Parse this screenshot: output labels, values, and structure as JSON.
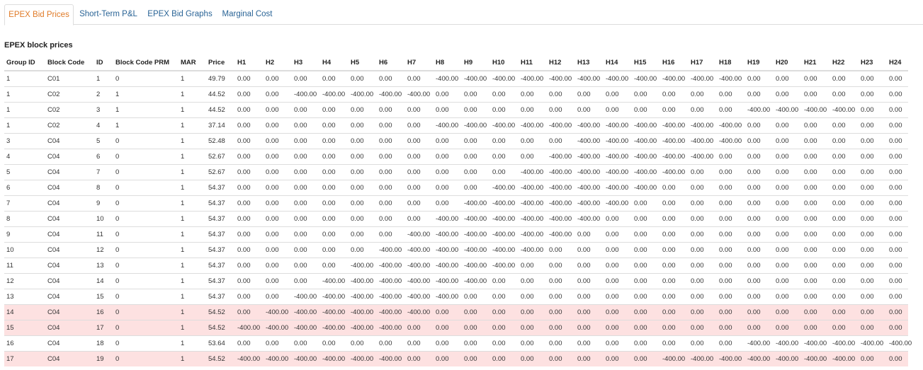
{
  "tabs": [
    {
      "label": "EPEX Bid Prices",
      "active": true
    },
    {
      "label": "Short-Term P&L",
      "active": false
    },
    {
      "label": "EPEX Bid Graphs",
      "active": false
    },
    {
      "label": "Marginal Cost",
      "active": false
    }
  ],
  "section_title": "EPEX block prices",
  "highlight_color": "#fde1e1",
  "accent_color": "#e07b28",
  "table": {
    "columns": [
      "Group ID",
      "Block Code",
      "ID",
      "Block Code PRM",
      "MAR",
      "Price",
      "H1",
      "H2",
      "H3",
      "H4",
      "H5",
      "H6",
      "H7",
      "H8",
      "H9",
      "H10",
      "H11",
      "H12",
      "H13",
      "H14",
      "H15",
      "H16",
      "H17",
      "H18",
      "H19",
      "H20",
      "H21",
      "H22",
      "H23",
      "H24"
    ],
    "rows": [
      {
        "highlight": false,
        "cells": [
          "1",
          "C01",
          "1",
          "0",
          "1",
          "49.79",
          "0.00",
          "0.00",
          "0.00",
          "0.00",
          "0.00",
          "0.00",
          "0.00",
          "-400.00",
          "-400.00",
          "-400.00",
          "-400.00",
          "-400.00",
          "-400.00",
          "-400.00",
          "-400.00",
          "-400.00",
          "-400.00",
          "-400.00",
          "0.00",
          "0.00",
          "0.00",
          "0.00",
          "0.00",
          "0.00"
        ]
      },
      {
        "highlight": false,
        "cells": [
          "1",
          "C02",
          "2",
          "1",
          "1",
          "44.52",
          "0.00",
          "0.00",
          "-400.00",
          "-400.00",
          "-400.00",
          "-400.00",
          "-400.00",
          "0.00",
          "0.00",
          "0.00",
          "0.00",
          "0.00",
          "0.00",
          "0.00",
          "0.00",
          "0.00",
          "0.00",
          "0.00",
          "0.00",
          "0.00",
          "0.00",
          "0.00",
          "0.00",
          "0.00"
        ]
      },
      {
        "highlight": false,
        "cells": [
          "1",
          "C02",
          "3",
          "1",
          "1",
          "44.52",
          "0.00",
          "0.00",
          "0.00",
          "0.00",
          "0.00",
          "0.00",
          "0.00",
          "0.00",
          "0.00",
          "0.00",
          "0.00",
          "0.00",
          "0.00",
          "0.00",
          "0.00",
          "0.00",
          "0.00",
          "0.00",
          "-400.00",
          "-400.00",
          "-400.00",
          "-400.00",
          "0.00",
          "0.00"
        ]
      },
      {
        "highlight": false,
        "cells": [
          "1",
          "C02",
          "4",
          "1",
          "1",
          "37.14",
          "0.00",
          "0.00",
          "0.00",
          "0.00",
          "0.00",
          "0.00",
          "0.00",
          "-400.00",
          "-400.00",
          "-400.00",
          "-400.00",
          "-400.00",
          "-400.00",
          "-400.00",
          "-400.00",
          "-400.00",
          "-400.00",
          "-400.00",
          "0.00",
          "0.00",
          "0.00",
          "0.00",
          "0.00",
          "0.00"
        ]
      },
      {
        "highlight": false,
        "cells": [
          "3",
          "C04",
          "5",
          "0",
          "1",
          "52.48",
          "0.00",
          "0.00",
          "0.00",
          "0.00",
          "0.00",
          "0.00",
          "0.00",
          "0.00",
          "0.00",
          "0.00",
          "0.00",
          "0.00",
          "-400.00",
          "-400.00",
          "-400.00",
          "-400.00",
          "-400.00",
          "-400.00",
          "0.00",
          "0.00",
          "0.00",
          "0.00",
          "0.00",
          "0.00"
        ]
      },
      {
        "highlight": false,
        "cells": [
          "4",
          "C04",
          "6",
          "0",
          "1",
          "52.67",
          "0.00",
          "0.00",
          "0.00",
          "0.00",
          "0.00",
          "0.00",
          "0.00",
          "0.00",
          "0.00",
          "0.00",
          "0.00",
          "-400.00",
          "-400.00",
          "-400.00",
          "-400.00",
          "-400.00",
          "-400.00",
          "0.00",
          "0.00",
          "0.00",
          "0.00",
          "0.00",
          "0.00",
          "0.00"
        ]
      },
      {
        "highlight": false,
        "cells": [
          "5",
          "C04",
          "7",
          "0",
          "1",
          "52.67",
          "0.00",
          "0.00",
          "0.00",
          "0.00",
          "0.00",
          "0.00",
          "0.00",
          "0.00",
          "0.00",
          "0.00",
          "-400.00",
          "-400.00",
          "-400.00",
          "-400.00",
          "-400.00",
          "-400.00",
          "0.00",
          "0.00",
          "0.00",
          "0.00",
          "0.00",
          "0.00",
          "0.00",
          "0.00"
        ]
      },
      {
        "highlight": false,
        "cells": [
          "6",
          "C04",
          "8",
          "0",
          "1",
          "54.37",
          "0.00",
          "0.00",
          "0.00",
          "0.00",
          "0.00",
          "0.00",
          "0.00",
          "0.00",
          "0.00",
          "-400.00",
          "-400.00",
          "-400.00",
          "-400.00",
          "-400.00",
          "-400.00",
          "0.00",
          "0.00",
          "0.00",
          "0.00",
          "0.00",
          "0.00",
          "0.00",
          "0.00",
          "0.00"
        ]
      },
      {
        "highlight": false,
        "cells": [
          "7",
          "C04",
          "9",
          "0",
          "1",
          "54.37",
          "0.00",
          "0.00",
          "0.00",
          "0.00",
          "0.00",
          "0.00",
          "0.00",
          "0.00",
          "-400.00",
          "-400.00",
          "-400.00",
          "-400.00",
          "-400.00",
          "-400.00",
          "0.00",
          "0.00",
          "0.00",
          "0.00",
          "0.00",
          "0.00",
          "0.00",
          "0.00",
          "0.00",
          "0.00"
        ]
      },
      {
        "highlight": false,
        "cells": [
          "8",
          "C04",
          "10",
          "0",
          "1",
          "54.37",
          "0.00",
          "0.00",
          "0.00",
          "0.00",
          "0.00",
          "0.00",
          "0.00",
          "-400.00",
          "-400.00",
          "-400.00",
          "-400.00",
          "-400.00",
          "-400.00",
          "0.00",
          "0.00",
          "0.00",
          "0.00",
          "0.00",
          "0.00",
          "0.00",
          "0.00",
          "0.00",
          "0.00",
          "0.00"
        ]
      },
      {
        "highlight": false,
        "cells": [
          "9",
          "C04",
          "11",
          "0",
          "1",
          "54.37",
          "0.00",
          "0.00",
          "0.00",
          "0.00",
          "0.00",
          "0.00",
          "-400.00",
          "-400.00",
          "-400.00",
          "-400.00",
          "-400.00",
          "-400.00",
          "0.00",
          "0.00",
          "0.00",
          "0.00",
          "0.00",
          "0.00",
          "0.00",
          "0.00",
          "0.00",
          "0.00",
          "0.00",
          "0.00"
        ]
      },
      {
        "highlight": false,
        "cells": [
          "10",
          "C04",
          "12",
          "0",
          "1",
          "54.37",
          "0.00",
          "0.00",
          "0.00",
          "0.00",
          "0.00",
          "-400.00",
          "-400.00",
          "-400.00",
          "-400.00",
          "-400.00",
          "-400.00",
          "0.00",
          "0.00",
          "0.00",
          "0.00",
          "0.00",
          "0.00",
          "0.00",
          "0.00",
          "0.00",
          "0.00",
          "0.00",
          "0.00",
          "0.00"
        ]
      },
      {
        "highlight": false,
        "cells": [
          "11",
          "C04",
          "13",
          "0",
          "1",
          "54.37",
          "0.00",
          "0.00",
          "0.00",
          "0.00",
          "-400.00",
          "-400.00",
          "-400.00",
          "-400.00",
          "-400.00",
          "-400.00",
          "0.00",
          "0.00",
          "0.00",
          "0.00",
          "0.00",
          "0.00",
          "0.00",
          "0.00",
          "0.00",
          "0.00",
          "0.00",
          "0.00",
          "0.00",
          "0.00"
        ]
      },
      {
        "highlight": false,
        "cells": [
          "12",
          "C04",
          "14",
          "0",
          "1",
          "54.37",
          "0.00",
          "0.00",
          "0.00",
          "-400.00",
          "-400.00",
          "-400.00",
          "-400.00",
          "-400.00",
          "-400.00",
          "0.00",
          "0.00",
          "0.00",
          "0.00",
          "0.00",
          "0.00",
          "0.00",
          "0.00",
          "0.00",
          "0.00",
          "0.00",
          "0.00",
          "0.00",
          "0.00",
          "0.00"
        ]
      },
      {
        "highlight": false,
        "cells": [
          "13",
          "C04",
          "15",
          "0",
          "1",
          "54.37",
          "0.00",
          "0.00",
          "-400.00",
          "-400.00",
          "-400.00",
          "-400.00",
          "-400.00",
          "-400.00",
          "0.00",
          "0.00",
          "0.00",
          "0.00",
          "0.00",
          "0.00",
          "0.00",
          "0.00",
          "0.00",
          "0.00",
          "0.00",
          "0.00",
          "0.00",
          "0.00",
          "0.00",
          "0.00"
        ]
      },
      {
        "highlight": true,
        "cells": [
          "14",
          "C04",
          "16",
          "0",
          "1",
          "54.52",
          "0.00",
          "-400.00",
          "-400.00",
          "-400.00",
          "-400.00",
          "-400.00",
          "-400.00",
          "0.00",
          "0.00",
          "0.00",
          "0.00",
          "0.00",
          "0.00",
          "0.00",
          "0.00",
          "0.00",
          "0.00",
          "0.00",
          "0.00",
          "0.00",
          "0.00",
          "0.00",
          "0.00",
          "0.00"
        ]
      },
      {
        "highlight": true,
        "cells": [
          "15",
          "C04",
          "17",
          "0",
          "1",
          "54.52",
          "-400.00",
          "-400.00",
          "-400.00",
          "-400.00",
          "-400.00",
          "-400.00",
          "0.00",
          "0.00",
          "0.00",
          "0.00",
          "0.00",
          "0.00",
          "0.00",
          "0.00",
          "0.00",
          "0.00",
          "0.00",
          "0.00",
          "0.00",
          "0.00",
          "0.00",
          "0.00",
          "0.00",
          "0.00"
        ]
      },
      {
        "highlight": false,
        "cells": [
          "16",
          "C04",
          "18",
          "0",
          "1",
          "53.64",
          "0.00",
          "0.00",
          "0.00",
          "0.00",
          "0.00",
          "0.00",
          "0.00",
          "0.00",
          "0.00",
          "0.00",
          "0.00",
          "0.00",
          "0.00",
          "0.00",
          "0.00",
          "0.00",
          "0.00",
          "0.00",
          "-400.00",
          "-400.00",
          "-400.00",
          "-400.00",
          "-400.00",
          "-400.00"
        ]
      },
      {
        "highlight": true,
        "cells": [
          "17",
          "C04",
          "19",
          "0",
          "1",
          "54.52",
          "-400.00",
          "-400.00",
          "-400.00",
          "-400.00",
          "-400.00",
          "-400.00",
          "0.00",
          "0.00",
          "0.00",
          "0.00",
          "0.00",
          "0.00",
          "0.00",
          "0.00",
          "0.00",
          "-400.00",
          "-400.00",
          "-400.00",
          "-400.00",
          "-400.00",
          "-400.00",
          "-400.00",
          "0.00",
          "0.00"
        ]
      }
    ]
  }
}
